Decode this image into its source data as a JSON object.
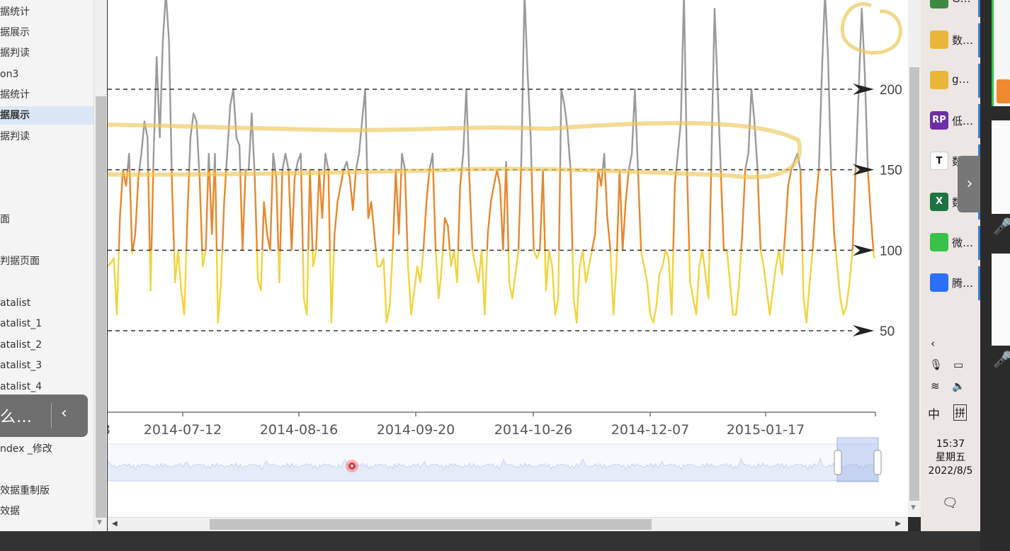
{
  "sidebar": {
    "items": [
      {
        "label": "据统计",
        "active": false
      },
      {
        "label": "据展示",
        "active": false
      },
      {
        "label": "据判读",
        "active": false
      },
      {
        "label": "on3",
        "active": false
      },
      {
        "label": "据统计",
        "active": false
      },
      {
        "label": "据展示",
        "active": true
      },
      {
        "label": "据判读",
        "active": false
      },
      {
        "label": "",
        "active": false
      },
      {
        "label": "",
        "active": false
      },
      {
        "label": "",
        "active": false
      },
      {
        "label": "面",
        "active": false
      },
      {
        "label": "",
        "active": false
      },
      {
        "label": "判据页面",
        "active": false
      },
      {
        "label": "",
        "active": false
      },
      {
        "label": "atalist",
        "active": false
      },
      {
        "label": "atalist_1",
        "active": false
      },
      {
        "label": "atalist_2",
        "active": false
      },
      {
        "label": "atalist_3",
        "active": false
      },
      {
        "label": "atalist_4",
        "active": false
      },
      {
        "label": "",
        "active": false
      },
      {
        "label": "ndex",
        "active": false
      },
      {
        "label": "ndex _修改",
        "active": false
      },
      {
        "label": "",
        "active": false
      },
      {
        "label": "效据重制版",
        "active": false
      },
      {
        "label": "效据",
        "active": false
      }
    ],
    "float_panel": {
      "text": "么…",
      "chevron": "‹"
    }
  },
  "chart": {
    "threshold_labels": [
      "200",
      "150",
      "100",
      "50"
    ],
    "x_ticks": [
      "3",
      "2014-07-12",
      "2014-08-16",
      "2014-09-20",
      "2014-10-26",
      "2014-12-07",
      "2015-01-17"
    ]
  },
  "chart_data": {
    "type": "line",
    "ylim": [
      0,
      255
    ],
    "markLines": [
      200,
      150,
      100,
      50
    ],
    "pieces": [
      {
        "lte": 100,
        "color": "#f2d43c"
      },
      {
        "gt": 100,
        "lte": 150,
        "color": "#e8872b"
      },
      {
        "gt": 150,
        "color": "#9a9a9a"
      }
    ],
    "x_range": [
      "2014-06-08",
      "2015-02-24"
    ],
    "y": [
      90,
      92,
      95,
      60,
      120,
      150,
      140,
      160,
      98,
      110,
      145,
      160,
      180,
      170,
      75,
      160,
      220,
      170,
      230,
      260,
      230,
      140,
      80,
      100,
      75,
      60,
      120,
      170,
      185,
      180,
      145,
      90,
      100,
      160,
      110,
      160,
      55,
      80,
      130,
      160,
      190,
      200,
      170,
      165,
      100,
      150,
      150,
      185,
      145,
      82,
      75,
      130,
      110,
      100,
      160,
      145,
      80,
      150,
      160,
      150,
      100,
      145,
      155,
      160,
      70,
      60,
      150,
      90,
      100,
      150,
      120,
      160,
      150,
      55,
      110,
      130,
      140,
      150,
      155,
      145,
      125,
      150,
      160,
      180,
      200,
      120,
      130,
      110,
      90,
      90,
      95,
      55,
      65,
      100,
      150,
      110,
      160,
      150,
      90,
      60,
      75,
      90,
      80,
      100,
      130,
      150,
      160,
      100,
      70,
      90,
      120,
      115,
      90,
      100,
      80,
      140,
      160,
      200,
      145,
      100,
      90,
      80,
      100,
      60,
      110,
      130,
      140,
      150,
      140,
      100,
      155,
      80,
      70,
      85,
      100,
      160,
      260,
      210,
      170,
      100,
      95,
      100,
      150,
      75,
      100,
      90,
      60,
      70,
      200,
      190,
      175,
      150,
      70,
      55,
      90,
      100,
      80,
      90,
      100,
      110,
      150,
      140,
      160,
      120,
      100,
      60,
      90,
      150,
      100,
      130,
      150,
      160,
      200,
      150,
      100,
      90,
      80,
      60,
      55,
      65,
      85,
      90,
      100,
      95,
      60,
      140,
      160,
      180,
      260,
      150,
      80,
      70,
      60,
      90,
      100,
      85,
      70,
      160,
      250,
      200,
      150,
      100,
      100,
      80,
      60,
      60,
      80,
      110,
      150,
      160,
      200,
      180,
      150,
      100,
      90,
      75,
      60,
      75,
      90,
      100,
      85,
      110,
      140,
      150,
      155,
      160,
      150,
      70,
      55,
      80,
      100,
      130,
      150,
      210,
      260,
      220,
      150,
      110,
      90,
      70,
      60,
      65,
      80,
      100,
      150,
      200,
      250,
      210,
      150,
      120,
      95
    ]
  },
  "taskbar": {
    "apps": [
      {
        "label": "G…",
        "icon": "chrome-icon",
        "color": "#3c8a3f"
      },
      {
        "label": "数…",
        "icon": "folder-icon",
        "color": "#e8b73a"
      },
      {
        "label": "g…",
        "icon": "folder-icon",
        "color": "#e8b73a"
      },
      {
        "label": "低…",
        "icon": "axure-icon",
        "color": "#6b2fa5",
        "glyph": "RP"
      },
      {
        "label": "数…",
        "icon": "typora-icon",
        "color": "#ffffff",
        "glyph": "T"
      },
      {
        "label": "数…",
        "icon": "excel-icon",
        "color": "#1f7244",
        "glyph": "X"
      },
      {
        "label": "微…",
        "icon": "wechat-icon",
        "color": "#35c34a"
      },
      {
        "label": "腾…",
        "icon": "tencent-meeting-icon",
        "color": "#2a6ff6"
      }
    ],
    "clock": {
      "time": "15:37",
      "weekday": "星期五",
      "date": "2022/8/5"
    },
    "ime": {
      "mode": "中",
      "pinyin": "拼"
    }
  }
}
